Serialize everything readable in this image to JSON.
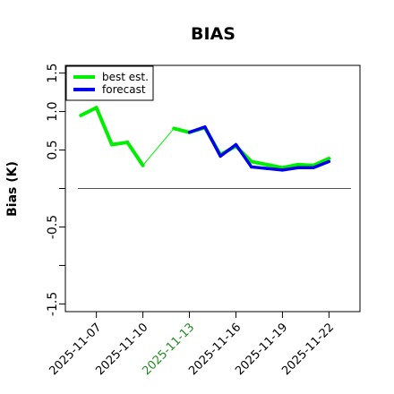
{
  "chart_data": {
    "type": "line",
    "title": "BIAS",
    "ylabel": "Bias (K)",
    "xlabel": "",
    "ylim": [
      -1.6,
      1.6
    ],
    "y_ticks": [
      -1.5,
      -0.5,
      0.5,
      1.0,
      1.5
    ],
    "y_tick_labels": [
      "-1.5",
      "-0.5",
      "0.5",
      "1.0",
      "1.5"
    ],
    "y_minor_ticks": [
      -1.0,
      0.0
    ],
    "x_range": [
      "2025-11-05",
      "2025-11-24"
    ],
    "x_ticks": [
      {
        "date": "2025-11-07",
        "label": "2025-11-07",
        "color": "#000000"
      },
      {
        "date": "2025-11-10",
        "label": "2025-11-10",
        "color": "#000000"
      },
      {
        "date": "2025-11-13",
        "label": "2025-11-13",
        "color": "#228b22"
      },
      {
        "date": "2025-11-16",
        "label": "2025-11-16",
        "color": "#000000"
      },
      {
        "date": "2025-11-19",
        "label": "2025-11-19",
        "color": "#000000"
      },
      {
        "date": "2025-11-22",
        "label": "2025-11-22",
        "color": "#000000"
      }
    ],
    "reference_line": 0.0,
    "legend_position": "top-left",
    "series": [
      {
        "name": "best est.",
        "color": "#00ee00",
        "points": [
          {
            "x": "2025-11-06",
            "y": 0.95
          },
          {
            "x": "2025-11-07",
            "y": 1.05
          },
          {
            "x": "2025-11-08",
            "y": 0.57
          },
          {
            "x": "2025-11-09",
            "y": 0.6
          },
          {
            "x": "2025-11-10",
            "y": 0.3
          },
          {
            "x": "2025-11-12",
            "y": 0.78
          },
          {
            "x": "2025-11-13",
            "y": 0.73
          },
          {
            "x": "2025-11-14",
            "y": 0.79
          },
          {
            "x": "2025-11-15",
            "y": 0.44
          },
          {
            "x": "2025-11-16",
            "y": 0.55
          },
          {
            "x": "2025-11-17",
            "y": 0.35
          },
          {
            "x": "2025-11-18",
            "y": 0.31
          },
          {
            "x": "2025-11-19",
            "y": 0.27
          },
          {
            "x": "2025-11-20",
            "y": 0.31
          },
          {
            "x": "2025-11-21",
            "y": 0.3
          },
          {
            "x": "2025-11-22",
            "y": 0.39
          }
        ]
      },
      {
        "name": "forecast",
        "color": "#0000ee",
        "points": [
          {
            "x": "2025-11-13",
            "y": 0.73
          },
          {
            "x": "2025-11-14",
            "y": 0.8
          },
          {
            "x": "2025-11-15",
            "y": 0.42
          },
          {
            "x": "2025-11-16",
            "y": 0.57
          },
          {
            "x": "2025-11-17",
            "y": 0.28
          },
          {
            "x": "2025-11-18",
            "y": 0.26
          },
          {
            "x": "2025-11-19",
            "y": 0.24
          },
          {
            "x": "2025-11-20",
            "y": 0.27
          },
          {
            "x": "2025-11-21",
            "y": 0.27
          },
          {
            "x": "2025-11-22",
            "y": 0.35
          }
        ]
      }
    ]
  }
}
